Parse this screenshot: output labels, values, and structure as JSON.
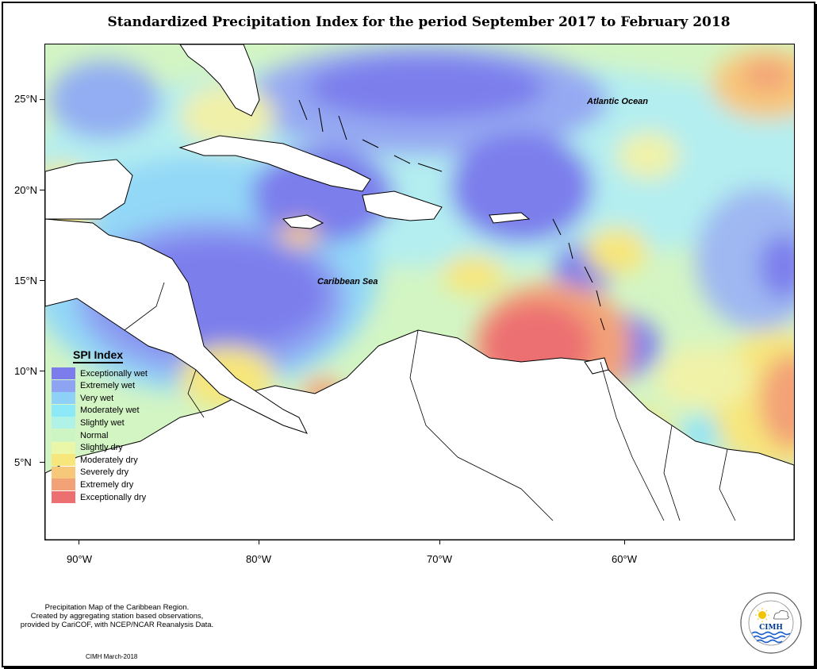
{
  "title": "Standardized Precipitation Index for the period September 2017 to February 2018",
  "map": {
    "labels": {
      "atlantic": "Atlantic Ocean",
      "caribbean": "Caribbean Sea"
    },
    "lat_ticks": [
      "25°N",
      "20°N",
      "15°N",
      "10°N",
      "5°N"
    ],
    "lon_ticks": [
      "90°W",
      "80°W",
      "70°W",
      "60°W"
    ]
  },
  "legend": {
    "title": "SPI Index",
    "items": [
      {
        "label": "Exceptionally wet",
        "color": "#7c7cec"
      },
      {
        "label": "Extremely wet",
        "color": "#8ea3f2"
      },
      {
        "label": "Very wet",
        "color": "#8fd0f7"
      },
      {
        "label": "Moderately wet",
        "color": "#8de8f7"
      },
      {
        "label": "Slightly wet",
        "color": "#b0f2e6"
      },
      {
        "label": "Normal",
        "color": "#cdf5c4"
      },
      {
        "label": "Slightly dry",
        "color": "#eaf7a8"
      },
      {
        "label": "Moderately dry",
        "color": "#f7e67c"
      },
      {
        "label": "Severely dry",
        "color": "#f7c77a"
      },
      {
        "label": "Extremely dry",
        "color": "#f3a277"
      },
      {
        "label": "Exceptionally dry",
        "color": "#ec6f72"
      }
    ]
  },
  "caption": {
    "line1": "Precipitation Map of the Caribbean Region.",
    "line2": "Created by aggregating station based observations,",
    "line3": "provided by CariCOF, with NCEP/NCAR Reanalysis Data.",
    "date": "CIMH March-2018"
  },
  "logo": {
    "name": "CIMH",
    "icon": "cimh-logo-icon"
  }
}
